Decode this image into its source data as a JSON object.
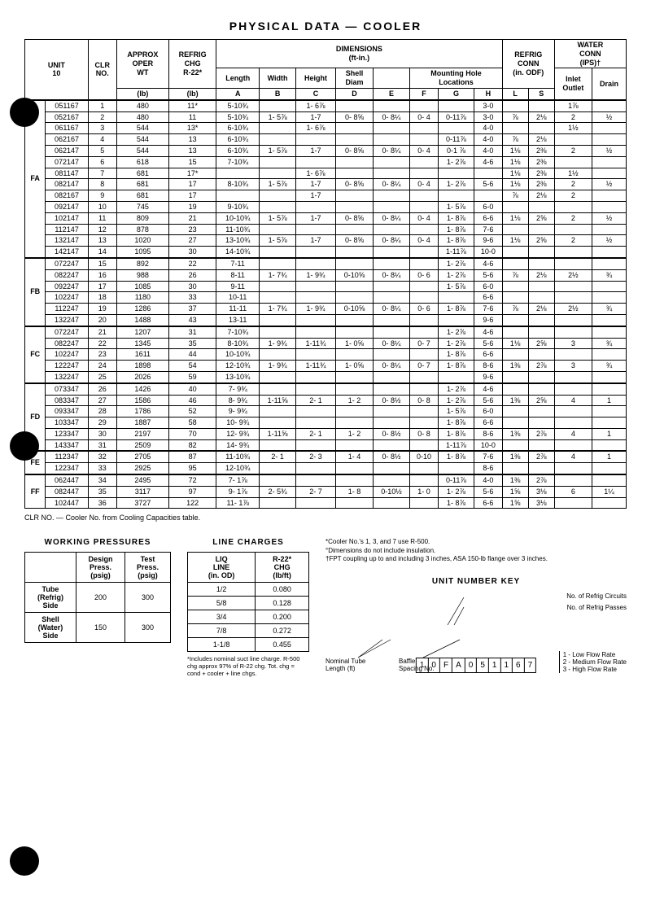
{
  "title": "PHYSICAL DATA — COOLER",
  "headers": {
    "unit": "UNIT\n10",
    "clr": "CLR\nNO.",
    "wt_top": "APPROX\nOPER\nWT",
    "wt_unit": "(lb)",
    "chg_top": "REFRIG\nCHG\nR-22*",
    "chg_unit": "(lb)",
    "dim": "DIMENSIONS\n(ft-in.)",
    "length": "Length",
    "width": "Width",
    "height": "Height",
    "shell": "Shell\nDiam",
    "mount": "Mounting Hole\nLocations",
    "A": "A",
    "B": "B",
    "C": "C",
    "D": "D",
    "E": "E",
    "F": "F",
    "G": "G",
    "H": "H",
    "rconn": "REFRIG\nCONN\n(in. ODF)",
    "L": "L",
    "S": "S",
    "wconn": "WATER\nCONN\n(IPS)†",
    "inlet": "Inlet\nOutlet",
    "drain": "Drain"
  },
  "groups": [
    {
      "label": "FA",
      "subgroups": [
        {
          "rows": [
            {
              "u": "051167",
              "c": "1",
              "wt": "480",
              "ch": "11*",
              "a": "5-10¾",
              "b": "",
              "cc": "1- 6⅞",
              "d": "",
              "e": "",
              "f": "",
              "g": "",
              "h": "3-0",
              "l": "",
              "s": "",
              "io": "1⅞",
              "dr": ""
            },
            {
              "u": "052167",
              "c": "2",
              "wt": "480",
              "ch": "11",
              "a": "5-10¾",
              "b": "1- 5⅞",
              "cc": "1-7",
              "d": "0- 8⅝",
              "e": "0- 8¼",
              "f": "0- 4",
              "g": "0-11⅞",
              "h": "3-0",
              "l": "⅞",
              "s": "2⅛",
              "io": "2",
              "dr": "½"
            },
            {
              "u": "061167",
              "c": "3",
              "wt": "544",
              "ch": "13*",
              "a": "6-10¾",
              "b": "",
              "cc": "1- 6⅞",
              "d": "",
              "e": "",
              "f": "",
              "g": "",
              "h": "4-0",
              "l": "",
              "s": "",
              "io": "1½",
              "dr": ""
            }
          ]
        },
        {
          "rows": [
            {
              "u": "062167",
              "c": "4",
              "wt": "544",
              "ch": "13",
              "a": "6-10¾",
              "b": "",
              "cc": "",
              "d": "",
              "e": "",
              "f": "",
              "g": "0-11⅞",
              "h": "4-0",
              "l": "⅞",
              "s": "2⅛",
              "io": "",
              "dr": ""
            },
            {
              "u": "062147",
              "c": "5",
              "wt": "544",
              "ch": "13",
              "a": "6-10¾",
              "b": "1- 5⅞",
              "cc": "1-7",
              "d": "0- 8⅝",
              "e": "0- 8¼",
              "f": "0- 4",
              "g": "0-1 ⅞",
              "h": "4-0",
              "l": "1⅛",
              "s": "2⅜",
              "io": "2",
              "dr": "½"
            },
            {
              "u": "072147",
              "c": "6",
              "wt": "618",
              "ch": "15",
              "a": "7-10¾",
              "b": "",
              "cc": "",
              "d": "",
              "e": "",
              "f": "",
              "g": "1- 2⅞",
              "h": "4-6",
              "l": "1⅛",
              "s": "2⅜",
              "io": "",
              "dr": ""
            }
          ]
        },
        {
          "rows": [
            {
              "u": "081147",
              "c": "7",
              "wt": "681",
              "ch": "17*",
              "a": "",
              "b": "",
              "cc": "1- 6⅞",
              "d": "",
              "e": "",
              "f": "",
              "g": "",
              "h": "",
              "l": "1⅛",
              "s": "2⅜",
              "io": "1½",
              "dr": ""
            },
            {
              "u": "082147",
              "c": "8",
              "wt": "681",
              "ch": "17",
              "a": "8-10¾",
              "b": "1- 5⅞",
              "cc": "1-7",
              "d": "0- 8⅝",
              "e": "0- 8¼",
              "f": "0- 4",
              "g": "1- 2⅞",
              "h": "5-6",
              "l": "1⅛",
              "s": "2⅜",
              "io": "2",
              "dr": "½"
            },
            {
              "u": "082167",
              "c": "9",
              "wt": "681",
              "ch": "17",
              "a": "",
              "b": "",
              "cc": "1-7",
              "d": "",
              "e": "",
              "f": "",
              "g": "",
              "h": "",
              "l": "⅞",
              "s": "2⅛",
              "io": "2",
              "dr": ""
            }
          ]
        },
        {
          "rows": [
            {
              "u": "092147",
              "c": "10",
              "wt": "745",
              "ch": "19",
              "a": "9-10¾",
              "b": "",
              "cc": "",
              "d": "",
              "e": "",
              "f": "",
              "g": "1- 5⅞",
              "h": "6-0",
              "l": "",
              "s": "",
              "io": "",
              "dr": ""
            },
            {
              "u": "102147",
              "c": "11",
              "wt": "809",
              "ch": "21",
              "a": "10-10¾",
              "b": "1- 5⅞",
              "cc": "1-7",
              "d": "0- 8⅝",
              "e": "0- 8¼",
              "f": "0- 4",
              "g": "1- 8⅞",
              "h": "6-6",
              "l": "1⅛",
              "s": "2⅝",
              "io": "2",
              "dr": "½"
            },
            {
              "u": "112147",
              "c": "12",
              "wt": "878",
              "ch": "23",
              "a": "11-10¾",
              "b": "",
              "cc": "",
              "d": "",
              "e": "",
              "f": "",
              "g": "1- 8⅞",
              "h": "7-6",
              "l": "",
              "s": "",
              "io": "",
              "dr": ""
            }
          ]
        },
        {
          "rows": [
            {
              "u": "132147",
              "c": "13",
              "wt": "1020",
              "ch": "27",
              "a": "13-10¾",
              "b": "1- 5⅞",
              "cc": "1-7",
              "d": "0- 8⅝",
              "e": "0- 8¼",
              "f": "0- 4",
              "g": "1- 8⅞",
              "h": "9-6",
              "l": "1⅛",
              "s": "2⅝",
              "io": "2",
              "dr": "½"
            },
            {
              "u": "142147",
              "c": "14",
              "wt": "1095",
              "ch": "30",
              "a": "14-10¾",
              "b": "",
              "cc": "",
              "d": "",
              "e": "",
              "f": "",
              "g": "1-11⅞",
              "h": "10-0",
              "l": "",
              "s": "",
              "io": "",
              "dr": ""
            }
          ]
        }
      ]
    },
    {
      "label": "FB",
      "subgroups": [
        {
          "rows": [
            {
              "u": "072247",
              "c": "15",
              "wt": "892",
              "ch": "22",
              "a": "7-11",
              "b": "",
              "cc": "",
              "d": "",
              "e": "",
              "f": "",
              "g": "1- 2⅞",
              "h": "4-6",
              "l": "",
              "s": "",
              "io": "",
              "dr": ""
            },
            {
              "u": "082247",
              "c": "16",
              "wt": "988",
              "ch": "26",
              "a": "8-11",
              "b": "1- 7¾",
              "cc": "1- 9¾",
              "d": "0-10⅝",
              "e": "0- 8¼",
              "f": "0- 6",
              "g": "1- 2⅞",
              "h": "5-6",
              "l": "⅞",
              "s": "2⅛",
              "io": "2½",
              "dr": "¾"
            },
            {
              "u": "092247",
              "c": "17",
              "wt": "1085",
              "ch": "30",
              "a": "9-11",
              "b": "",
              "cc": "",
              "d": "",
              "e": "",
              "f": "",
              "g": "1- 5⅞",
              "h": "6-0",
              "l": "",
              "s": "",
              "io": "",
              "dr": ""
            }
          ]
        },
        {
          "rows": [
            {
              "u": "102247",
              "c": "18",
              "wt": "1180",
              "ch": "33",
              "a": "10-11",
              "b": "",
              "cc": "",
              "d": "",
              "e": "",
              "f": "",
              "g": "",
              "h": "6-6",
              "l": "",
              "s": "",
              "io": "",
              "dr": ""
            },
            {
              "u": "112247",
              "c": "19",
              "wt": "1286",
              "ch": "37",
              "a": "11-11",
              "b": "1- 7¾",
              "cc": "1- 9¾",
              "d": "0-10⅝",
              "e": "0- 8¼",
              "f": "0- 6",
              "g": "1- 8⅞",
              "h": "7-6",
              "l": "⅞",
              "s": "2⅛",
              "io": "2½",
              "dr": "¾"
            },
            {
              "u": "132247",
              "c": "20",
              "wt": "1488",
              "ch": "43",
              "a": "13-11",
              "b": "",
              "cc": "",
              "d": "",
              "e": "",
              "f": "",
              "g": "",
              "h": "9-6",
              "l": "",
              "s": "",
              "io": "",
              "dr": ""
            }
          ]
        }
      ]
    },
    {
      "label": "FC",
      "subgroups": [
        {
          "rows": [
            {
              "u": "072247",
              "c": "21",
              "wt": "1207",
              "ch": "31",
              "a": "7-10¾",
              "b": "",
              "cc": "",
              "d": "",
              "e": "",
              "f": "",
              "g": "1- 2⅞",
              "h": "4-6",
              "l": "",
              "s": "",
              "io": "",
              "dr": ""
            },
            {
              "u": "082247",
              "c": "22",
              "wt": "1345",
              "ch": "35",
              "a": "8-10¾",
              "b": "1- 9¾",
              "cc": "1-11¾",
              "d": "1- 0⅝",
              "e": "0- 8¼",
              "f": "0- 7",
              "g": "1- 2⅞",
              "h": "5-6",
              "l": "1⅛",
              "s": "2⅝",
              "io": "3",
              "dr": "¾"
            },
            {
              "u": "102247",
              "c": "23",
              "wt": "1611",
              "ch": "44",
              "a": "10-10¾",
              "b": "",
              "cc": "",
              "d": "",
              "e": "",
              "f": "",
              "g": "1- 8⅞",
              "h": "6-6",
              "l": "",
              "s": "",
              "io": "",
              "dr": ""
            }
          ]
        },
        {
          "rows": [
            {
              "u": "122247",
              "c": "24",
              "wt": "1898",
              "ch": "54",
              "a": "12-10¾",
              "b": "1- 9¾",
              "cc": "1-11¾",
              "d": "1- 0⅝",
              "e": "0- 8¼",
              "f": "0- 7",
              "g": "1- 8⅞",
              "h": "8-6",
              "l": "1⅜",
              "s": "2⅞",
              "io": "3",
              "dr": "¾"
            },
            {
              "u": "132247",
              "c": "25",
              "wt": "2026",
              "ch": "59",
              "a": "13-10¾",
              "b": "",
              "cc": "",
              "d": "",
              "e": "",
              "f": "",
              "g": "",
              "h": "9-6",
              "l": "",
              "s": "",
              "io": "",
              "dr": ""
            }
          ]
        }
      ]
    },
    {
      "label": "FD",
      "subgroups": [
        {
          "rows": [
            {
              "u": "073347",
              "c": "26",
              "wt": "1426",
              "ch": "40",
              "a": "7- 9¾",
              "b": "",
              "cc": "",
              "d": "",
              "e": "",
              "f": "",
              "g": "1- 2⅞",
              "h": "4-6",
              "l": "",
              "s": "",
              "io": "",
              "dr": ""
            },
            {
              "u": "083347",
              "c": "27",
              "wt": "1586",
              "ch": "46",
              "a": "8- 9¾",
              "b": "1-11⅝",
              "cc": "2- 1",
              "d": "1- 2",
              "e": "0- 8½",
              "f": "0- 8",
              "g": "1- 2⅞",
              "h": "5-6",
              "l": "1⅜",
              "s": "2⅝",
              "io": "4",
              "dr": "1"
            },
            {
              "u": "093347",
              "c": "28",
              "wt": "1786",
              "ch": "52",
              "a": "9- 9¾",
              "b": "",
              "cc": "",
              "d": "",
              "e": "",
              "f": "",
              "g": "1- 5⅞",
              "h": "6-0",
              "l": "",
              "s": "",
              "io": "",
              "dr": ""
            }
          ]
        },
        {
          "rows": [
            {
              "u": "103347",
              "c": "29",
              "wt": "1887",
              "ch": "58",
              "a": "10- 9¾",
              "b": "",
              "cc": "",
              "d": "",
              "e": "",
              "f": "",
              "g": "1- 8⅞",
              "h": "6-6",
              "l": "",
              "s": "",
              "io": "",
              "dr": ""
            },
            {
              "u": "123347",
              "c": "30",
              "wt": "2197",
              "ch": "70",
              "a": "12- 9¾",
              "b": "1-11⅝",
              "cc": "2- 1",
              "d": "1- 2",
              "e": "0- 8½",
              "f": "0- 8",
              "g": "1- 8⅞",
              "h": "8-6",
              "l": "1⅜",
              "s": "2⅞",
              "io": "4",
              "dr": "1"
            },
            {
              "u": "143347",
              "c": "31",
              "wt": "2509",
              "ch": "82",
              "a": "14- 9¾",
              "b": "",
              "cc": "",
              "d": "",
              "e": "",
              "f": "",
              "g": "1-11⅞",
              "h": "10-0",
              "l": "",
              "s": "",
              "io": "",
              "dr": ""
            }
          ]
        }
      ]
    },
    {
      "label": "FE",
      "subgroups": [
        {
          "rows": [
            {
              "u": "112347",
              "c": "32",
              "wt": "2705",
              "ch": "87",
              "a": "11-10¾",
              "b": "2- 1",
              "cc": "2- 3",
              "d": "1- 4",
              "e": "0- 8½",
              "f": "0-10",
              "g": "1- 8⅞",
              "h": "7-6",
              "l": "1⅜",
              "s": "2⅞",
              "io": "4",
              "dr": "1"
            },
            {
              "u": "122347",
              "c": "33",
              "wt": "2925",
              "ch": "95",
              "a": "12-10¾",
              "b": "",
              "cc": "",
              "d": "",
              "e": "",
              "f": "",
              "g": "",
              "h": "8-6",
              "l": "",
              "s": "",
              "io": "",
              "dr": ""
            }
          ]
        }
      ]
    },
    {
      "label": "FF",
      "subgroups": [
        {
          "rows": [
            {
              "u": "062447",
              "c": "34",
              "wt": "2495",
              "ch": "72",
              "a": "7- 1⅞",
              "b": "",
              "cc": "",
              "d": "",
              "e": "",
              "f": "",
              "g": "0-11⅞",
              "h": "4-0",
              "l": "1⅜",
              "s": "2⅞",
              "io": "",
              "dr": ""
            },
            {
              "u": "082447",
              "c": "35",
              "wt": "3117",
              "ch": "97",
              "a": "9- 1⅞",
              "b": "2- 5¾",
              "cc": "2- 7",
              "d": "1- 8",
              "e": "0-10½",
              "f": "1- 0",
              "g": "1- 2⅞",
              "h": "5-6",
              "l": "1⅝",
              "s": "3⅛",
              "io": "6",
              "dr": "1¼"
            },
            {
              "u": "102447",
              "c": "36",
              "wt": "3727",
              "ch": "122",
              "a": "11- 1⅞",
              "b": "",
              "cc": "",
              "d": "",
              "e": "",
              "f": "",
              "g": "1- 8⅞",
              "h": "6-6",
              "l": "1⅝",
              "s": "3⅛",
              "io": "",
              "dr": ""
            }
          ]
        }
      ]
    }
  ],
  "clr_note": "CLR NO. — Cooler No. from Cooling Capacities table.",
  "working": {
    "title": "WORKING PRESSURES",
    "h1": "Design\nPress.\n(psig)",
    "h2": "Test\nPress.\n(psig)",
    "r1l": "Tube\n(Refrig)\nSide",
    "r1a": "200",
    "r1b": "300",
    "r2l": "Shell\n(Water)\nSide",
    "r2a": "150",
    "r2b": "300"
  },
  "line": {
    "title": "LINE CHARGES",
    "h1": "LIQ\nLINE\n(in. OD)",
    "h2": "R-22*\nCHG\n(lb/ft)",
    "rows": [
      [
        "1/2",
        "0.080"
      ],
      [
        "5/8",
        "0.128"
      ],
      [
        "3/4",
        "0.200"
      ],
      [
        "7/8",
        "0.272"
      ],
      [
        "1-1/8",
        "0.455"
      ]
    ],
    "note": "*Includes nominal suct line charge. R-500 chg approx 97% of R-22 chg. Tot. chg = cond + cooler + line chgs."
  },
  "footnotes": {
    "a": "*Cooler No.'s 1, 3, and 7 use R-500.",
    "b": "°Dimensions do not include insulation.",
    "c": "†FPT coupling up to and including 3 inches, ASA 150-lb flange over 3 inches."
  },
  "unitkey": {
    "title": "UNIT NUMBER KEY",
    "boxes": [
      "1",
      "0",
      "F",
      "A",
      "0",
      "5",
      "1",
      "1",
      "6",
      "7"
    ],
    "l1": "No. of Refrig Circuits",
    "l2": "No. of Refrig Passes",
    "l3": "Nominal Tube\nLength (ft)",
    "l4": "Baffle\nSpacing No.",
    "l4opts": "1 - Low Flow Rate\n2 - Medium Flow Rate\n3 - High Flow Rate"
  }
}
